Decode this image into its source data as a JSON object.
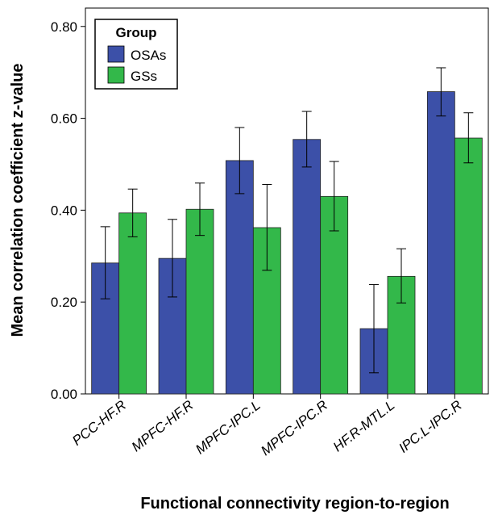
{
  "chart_data": {
    "type": "bar",
    "title": "",
    "xlabel": "Functional connectivity region-to-region",
    "ylabel": "Mean correlation coefficient z-value",
    "categories": [
      "PCC-HF.R",
      "MPFC-HF.R",
      "MPFC-IPC.L",
      "MPFC-IPC.R",
      "HF.R-MTL.L",
      "IPC.L-IPC.R"
    ],
    "ylim": [
      0,
      0.84
    ],
    "yticks": [
      "0.00",
      "0.20",
      "0.40",
      "0.60",
      "0.80"
    ],
    "grid": false,
    "legend_position": "top-left",
    "legend_title": "Group",
    "series": [
      {
        "name": "OSAs",
        "color": "#3c50a8",
        "values": [
          0.285,
          0.295,
          0.508,
          0.554,
          0.142,
          0.658
        ],
        "error_low": [
          0.207,
          0.211,
          0.436,
          0.494,
          0.046,
          0.605
        ],
        "error_high": [
          0.364,
          0.38,
          0.58,
          0.615,
          0.238,
          0.71
        ]
      },
      {
        "name": "GSs",
        "color": "#33b84a",
        "values": [
          0.394,
          0.402,
          0.362,
          0.43,
          0.256,
          0.557
        ],
        "error_low": [
          0.342,
          0.345,
          0.269,
          0.355,
          0.198,
          0.503
        ],
        "error_high": [
          0.446,
          0.459,
          0.456,
          0.506,
          0.316,
          0.612
        ]
      }
    ]
  }
}
